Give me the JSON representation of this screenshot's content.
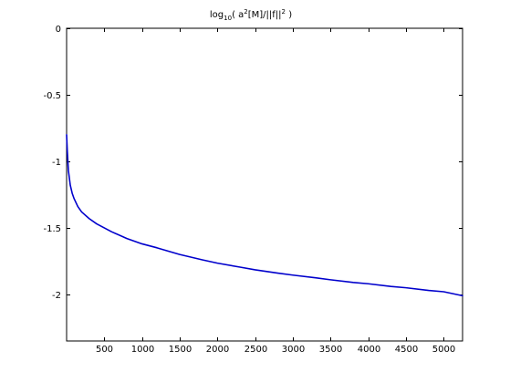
{
  "chart_data": {
    "type": "line",
    "title": {
      "prefix": "log",
      "sub1": "10",
      "part1": "( a",
      "sup1": "2",
      "part2": "[M]/||f||",
      "sup2": "2",
      "part3": " )"
    },
    "xlabel": "",
    "ylabel": "",
    "xlim": [
      1,
      5250
    ],
    "ylim": [
      -2.35,
      0
    ],
    "xticks": [
      500,
      1000,
      1500,
      2000,
      2500,
      3000,
      3500,
      4000,
      4500,
      5000
    ],
    "yticks": [
      0,
      -0.5,
      -1,
      -1.5,
      -2
    ],
    "grid": false,
    "legend": "none",
    "series": [
      {
        "color": "#0000cc",
        "x": [
          1,
          10,
          25,
          50,
          75,
          100,
          150,
          200,
          300,
          400,
          500,
          600,
          800,
          1000,
          1200,
          1500,
          1800,
          2000,
          2300,
          2500,
          2800,
          3000,
          3300,
          3500,
          3800,
          4000,
          4300,
          4500,
          4800,
          5000,
          5250
        ],
        "y": [
          -0.8,
          -0.92,
          -1.07,
          -1.18,
          -1.24,
          -1.28,
          -1.34,
          -1.38,
          -1.43,
          -1.47,
          -1.5,
          -1.53,
          -1.58,
          -1.62,
          -1.65,
          -1.7,
          -1.74,
          -1.765,
          -1.795,
          -1.815,
          -1.84,
          -1.855,
          -1.875,
          -1.89,
          -1.91,
          -1.92,
          -1.94,
          -1.95,
          -1.97,
          -1.98,
          -2.01
        ]
      }
    ]
  }
}
